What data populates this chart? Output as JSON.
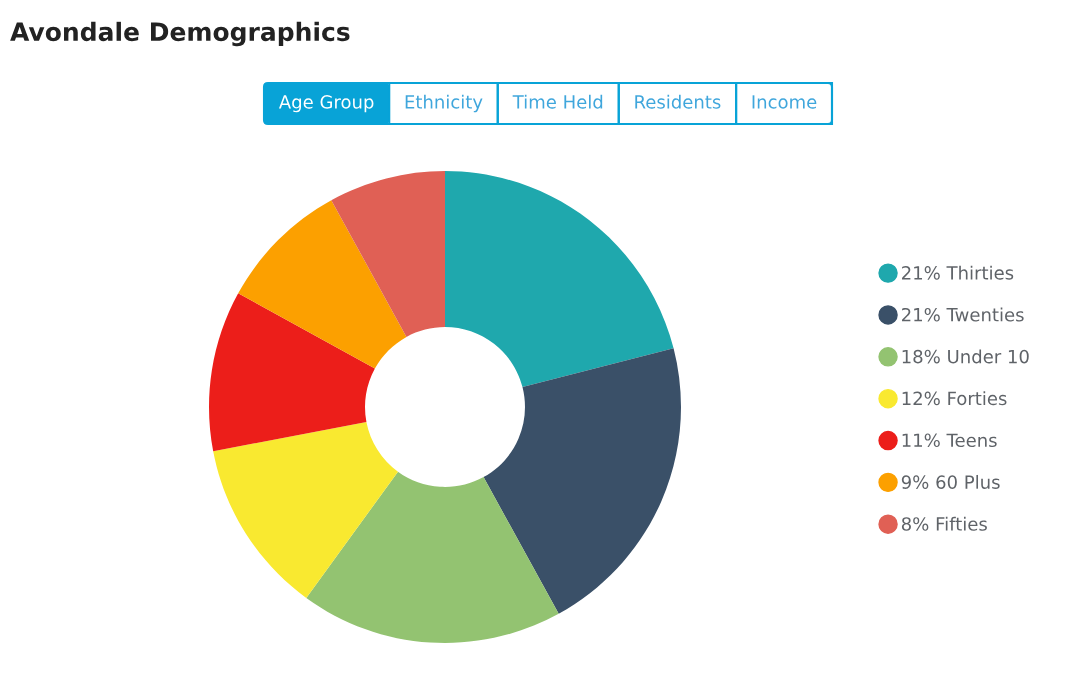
{
  "chart_data": {
    "type": "donut",
    "title": "Avondale Demographics",
    "subtitle": "Age Group",
    "annotations": [
      "Ethnicity",
      "Time Held",
      "Residents",
      "Income"
    ],
    "categories": [
      "Thirties",
      "Twenties",
      "Under 10",
      "Forties",
      "Teens",
      "60 Plus",
      "Fifties"
    ],
    "values": [
      21,
      21,
      18,
      12,
      11,
      9,
      8
    ],
    "value_labels": [
      "21%",
      "21%",
      "18%",
      "12%",
      "11%",
      "9%",
      "8%"
    ],
    "colors": [
      "#1fa8ad",
      "#3a5068",
      "#93c371",
      "#f9e930",
      "#ec1e1a",
      "#fca000",
      "#e06055"
    ],
    "legend": "right"
  }
}
